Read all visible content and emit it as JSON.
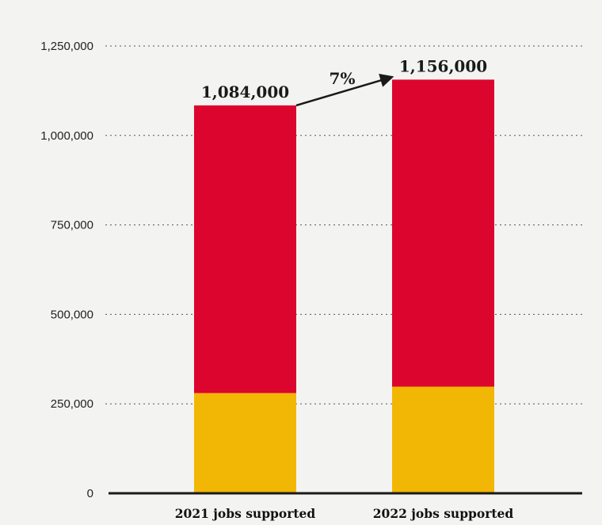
{
  "chart_data": {
    "type": "bar",
    "stacked": true,
    "categories": [
      "2021 jobs supported",
      "2022 jobs supported"
    ],
    "series": [
      {
        "values": [
          280000,
          298000
        ],
        "color": "#f2b705"
      },
      {
        "values": [
          804000,
          858000
        ],
        "color": "#dc052d"
      }
    ],
    "totals": [
      1084000,
      1156000
    ],
    "data_labels": [
      "1,084,000",
      "1,156,000"
    ],
    "change_annotation": "7%",
    "title": "",
    "xlabel": "",
    "ylabel": "",
    "ylim": [
      0,
      1250000
    ],
    "yticks": [
      0,
      250000,
      500000,
      750000,
      1000000,
      1250000
    ],
    "ytick_labels": [
      "0",
      "250,000",
      "500,000",
      "750,000",
      "1,000,000",
      "1,250,000"
    ],
    "grid": true,
    "legend": "none"
  }
}
